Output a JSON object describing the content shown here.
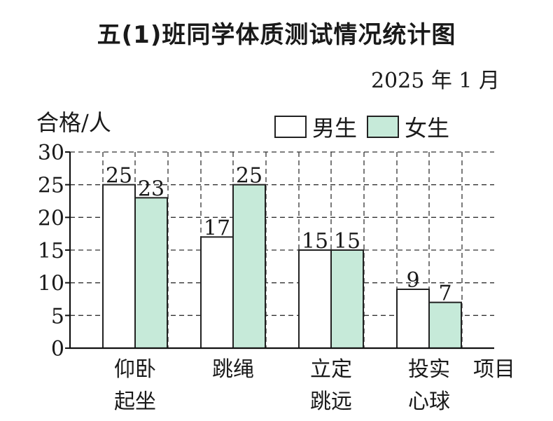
{
  "title": "五(1)班同学体质测试情况统计图",
  "date": "2025 年 1 月",
  "chart_data": {
    "type": "bar",
    "title": "五(1)班同学体质测试情况统计图",
    "ylabel": "合格/人",
    "xlabel": "项目",
    "ylim": [
      0,
      30
    ],
    "yticks": [
      0,
      5,
      10,
      15,
      20,
      25,
      30
    ],
    "grid": true,
    "legend_position": "top-right",
    "categories": [
      [
        "仰卧",
        "起坐"
      ],
      [
        "跳绳"
      ],
      [
        "立定",
        "跳远"
      ],
      [
        "投实",
        "心球"
      ]
    ],
    "series": [
      {
        "name": "男生",
        "values": [
          25,
          17,
          15,
          9
        ],
        "color": "#ffffff"
      },
      {
        "name": "女生",
        "values": [
          23,
          25,
          15,
          7
        ],
        "color": "#c6ead9"
      }
    ]
  }
}
